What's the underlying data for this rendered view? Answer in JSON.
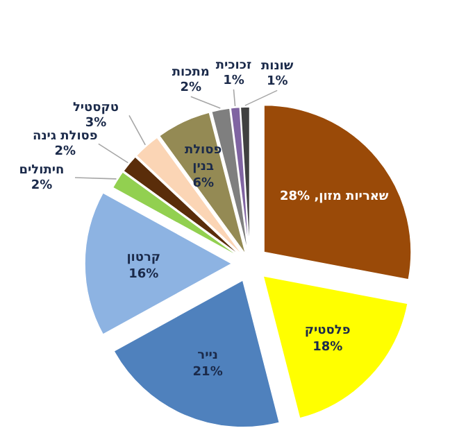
{
  "chart_data": {
    "type": "pie",
    "categories": [
      "שאריות מזון",
      "פלסטיק",
      "נייר",
      "קרטון",
      "חיתולים",
      "פסולת גינה",
      "טקסטיל",
      "פסולת\nבנין",
      "מתכות",
      "זכוכית",
      "שונות"
    ],
    "values": [
      28,
      18,
      21,
      16,
      2,
      2,
      3,
      6,
      2,
      1,
      1
    ],
    "colors": [
      "#9a4a08",
      "#ffff00",
      "#4f81bd",
      "#8db3e2",
      "#92d050",
      "#5a2d0a",
      "#fbd5b5",
      "#948a54",
      "#7f7f7f",
      "#8064a2",
      "#404040"
    ],
    "value_labels": [
      "28%",
      "18%",
      "21%",
      "16%",
      "2%",
      "2%",
      "3%",
      "6%",
      "2%",
      "1%",
      "1%"
    ]
  }
}
